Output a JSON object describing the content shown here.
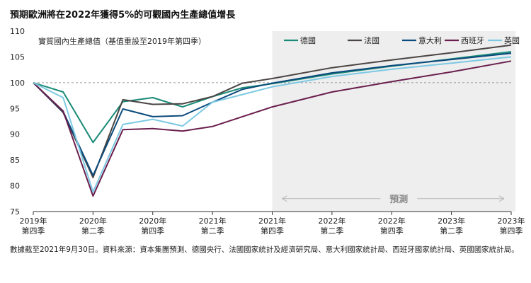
{
  "title": "預期歐洲將在2022年獲得5%的可觀國內生產總值增長",
  "footnote": "數據截至2021年9月30日。資料來源：資本集團預測、德國央行、法國國家統計及經濟研究局、意大利國家統計局、西班牙國家統計局、英國國家統計局。",
  "chart_data": {
    "type": "line",
    "ylabel": "實質國內生產總值（基值重設至2019年第四季）",
    "ylim": [
      75,
      110
    ],
    "yticks": [
      75,
      80,
      85,
      90,
      95,
      100,
      105,
      110
    ],
    "reference_line": 100,
    "categories": [
      [
        "2019年",
        "第四季"
      ],
      [
        "2020年",
        "第二季"
      ],
      [
        "2020年",
        "第四季"
      ],
      [
        "2021年",
        "第二季"
      ],
      [
        "2021年",
        "第四季"
      ],
      [
        "2022年",
        "第二季"
      ],
      [
        "2022年",
        "第四季"
      ],
      [
        "2023年",
        "第二季"
      ],
      [
        "2023年",
        "第四季"
      ]
    ],
    "forecast_label": "預測",
    "forecast_start": 4,
    "series": [
      {
        "name": "德國",
        "color": "#1a8a77",
        "x": [
          0,
          0.5,
          1,
          1.5,
          2,
          2.5,
          3,
          3.5,
          4,
          5,
          6,
          7,
          8
        ],
        "values": [
          100,
          98.2,
          88.4,
          96.3,
          97.1,
          95.3,
          97.3,
          99.0,
          99.8,
          101.7,
          103.2,
          104.6,
          106.0
        ]
      },
      {
        "name": "法國",
        "color": "#4a4543",
        "x": [
          0,
          0.5,
          1,
          1.5,
          2,
          2.5,
          3,
          3.5,
          4,
          5,
          6,
          7,
          8
        ],
        "values": [
          100,
          94.2,
          81.6,
          96.7,
          95.8,
          95.9,
          97.3,
          99.9,
          100.8,
          102.9,
          104.4,
          105.8,
          107.3
        ]
      },
      {
        "name": "意大利",
        "color": "#0a4a7c",
        "x": [
          0,
          0.5,
          1,
          1.5,
          2,
          2.5,
          3,
          3.5,
          4,
          5,
          6,
          7,
          8
        ],
        "values": [
          100,
          94.4,
          82.0,
          94.9,
          93.4,
          93.6,
          96.2,
          98.7,
          99.9,
          101.9,
          103.3,
          104.5,
          105.7
        ]
      },
      {
        "name": "西班牙",
        "color": "#6a1f4d",
        "x": [
          0,
          0.5,
          1,
          1.5,
          2,
          2.5,
          3,
          3.5,
          4,
          5,
          6,
          7,
          8
        ],
        "values": [
          100,
          94.5,
          78.0,
          90.9,
          91.1,
          90.6,
          91.5,
          93.4,
          95.3,
          98.2,
          100.2,
          102.1,
          104.2
        ]
      },
      {
        "name": "英國",
        "color": "#7dc9e3",
        "x": [
          0,
          0.5,
          1,
          1.5,
          2,
          2.5,
          3,
          3.5,
          4,
          5,
          6,
          7,
          8
        ],
        "values": [
          100,
          97.1,
          78.8,
          91.9,
          92.9,
          91.6,
          96.2,
          97.7,
          99.2,
          101.2,
          102.6,
          103.8,
          105.0
        ]
      }
    ]
  }
}
